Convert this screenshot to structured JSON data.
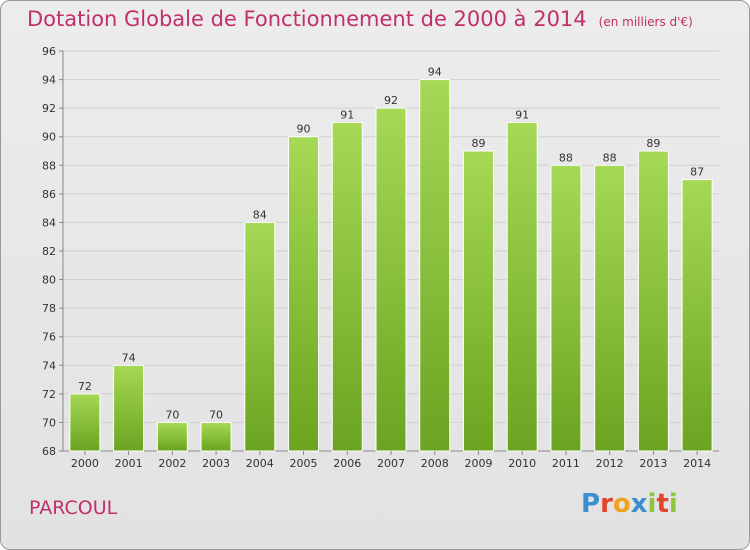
{
  "title": "Dotation Globale de Fonctionnement de 2000 à 2014",
  "unit_label": "(en milliers d'€)",
  "commune": "PARCOUL",
  "logo": {
    "letters": [
      "P",
      "r",
      "o",
      "x",
      "i",
      "t",
      "i"
    ],
    "colors": [
      "#3b8fd1",
      "#e3452a",
      "#f1a31b",
      "#3b8fd1",
      "#8cc63f",
      "#e3452a",
      "#8cc63f"
    ]
  },
  "colors": {
    "title": "#c0306a",
    "bar_light": "#a6d955",
    "bar_dark": "#6aa420",
    "grid": "#cfcfcf"
  },
  "chart_data": {
    "type": "bar",
    "categories": [
      "2000",
      "2001",
      "2002",
      "2003",
      "2004",
      "2005",
      "2006",
      "2007",
      "2008",
      "2009",
      "2010",
      "2011",
      "2012",
      "2013",
      "2014"
    ],
    "values": [
      72,
      74,
      70,
      70,
      84,
      90,
      91,
      92,
      94,
      89,
      91,
      88,
      88,
      89,
      87
    ],
    "ylim": [
      68,
      96
    ],
    "yticks": [
      68,
      70,
      72,
      74,
      76,
      78,
      80,
      82,
      84,
      86,
      88,
      90,
      92,
      94,
      96
    ],
    "grid": true
  }
}
